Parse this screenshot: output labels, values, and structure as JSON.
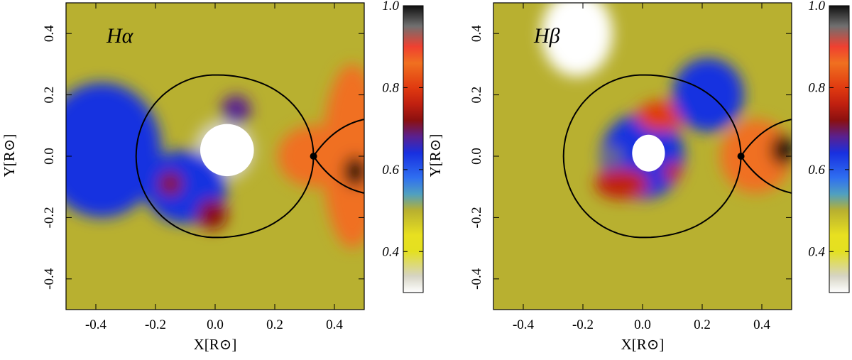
{
  "chart_data": [
    {
      "type": "heatmap",
      "panel_label": "Hα",
      "xlabel": "X[R⊙]",
      "ylabel": "Y[R⊙]",
      "xlim": [
        -0.5,
        0.5
      ],
      "ylim": [
        -0.5,
        0.5
      ],
      "x_ticks": [
        -0.4,
        -0.2,
        0.0,
        0.2,
        0.4
      ],
      "y_ticks": [
        -0.4,
        -0.2,
        0.0,
        0.2,
        0.4
      ],
      "x_tick_labels": [
        "-0.4",
        "-0.2",
        "0.0",
        "0.2",
        "0.4"
      ],
      "y_tick_labels": [
        "-0.4",
        "-0.2",
        "0.0",
        "0.2",
        "0.4"
      ],
      "colorbar": {
        "range": [
          0.3,
          1.0
        ],
        "ticks": [
          1.0,
          0.8,
          0.6,
          0.4
        ],
        "tick_labels": [
          "1.0",
          "0.8",
          "0.6",
          "0.4"
        ]
      },
      "background_level": 0.48,
      "features": [
        {
          "kind": "blob",
          "x": 0.03,
          "y": 0.02,
          "rx": 0.1,
          "ry": 0.1,
          "level": 0.34
        },
        {
          "kind": "blob",
          "x": -0.1,
          "y": -0.1,
          "rx": 0.14,
          "ry": 0.12,
          "level": 0.62
        },
        {
          "kind": "blob",
          "x": -0.15,
          "y": -0.09,
          "rx": 0.04,
          "ry": 0.04,
          "level": 0.72
        },
        {
          "kind": "blob",
          "x": 0.07,
          "y": 0.15,
          "rx": 0.05,
          "ry": 0.05,
          "level": 0.66
        },
        {
          "kind": "blob",
          "x": -0.01,
          "y": -0.19,
          "rx": 0.05,
          "ry": 0.05,
          "level": 0.7
        },
        {
          "kind": "blob",
          "x": -0.38,
          "y": 0.02,
          "rx": 0.2,
          "ry": 0.22,
          "level": 0.6
        },
        {
          "kind": "blob",
          "x": 0.33,
          "y": 0.0,
          "rx": 0.12,
          "ry": 0.1,
          "level": 0.84
        },
        {
          "kind": "blob",
          "x": 0.46,
          "y": 0.0,
          "rx": 0.1,
          "ry": 0.3,
          "level": 0.82
        },
        {
          "kind": "blob",
          "x": 0.47,
          "y": -0.05,
          "rx": 0.04,
          "ry": 0.05,
          "level": 0.98
        }
      ],
      "white_core": {
        "x": 0.04,
        "y": 0.02,
        "rx": 0.09,
        "ry": 0.085
      }
    },
    {
      "type": "heatmap",
      "panel_label": "Hβ",
      "xlabel": "X[R⊙]",
      "ylabel": "Y[R⊙]",
      "xlim": [
        -0.5,
        0.5
      ],
      "ylim": [
        -0.5,
        0.5
      ],
      "x_ticks": [
        -0.4,
        -0.2,
        0.0,
        0.2,
        0.4
      ],
      "y_ticks": [
        -0.4,
        -0.2,
        0.0,
        0.2,
        0.4
      ],
      "x_tick_labels": [
        "-0.4",
        "-0.2",
        "0.0",
        "0.2",
        "0.4"
      ],
      "y_tick_labels": [
        "-0.4",
        "-0.2",
        "0.0",
        "0.2",
        "0.4"
      ],
      "colorbar": {
        "range": [
          0.3,
          1.0
        ],
        "ticks": [
          1.0,
          0.8,
          0.6,
          0.4
        ],
        "tick_labels": [
          "1.0",
          "0.8",
          "0.6",
          "0.4"
        ]
      },
      "background_level": 0.46,
      "features": [
        {
          "kind": "blob",
          "x": -0.22,
          "y": 0.4,
          "rx": 0.12,
          "ry": 0.14,
          "level": 0.3
        },
        {
          "kind": "blob",
          "x": 0.0,
          "y": 0.0,
          "rx": 0.14,
          "ry": 0.14,
          "level": 0.64
        },
        {
          "kind": "blob",
          "x": 0.06,
          "y": 0.13,
          "rx": 0.08,
          "ry": 0.05,
          "level": 0.8
        },
        {
          "kind": "blob",
          "x": -0.07,
          "y": -0.09,
          "rx": 0.09,
          "ry": 0.05,
          "level": 0.76
        },
        {
          "kind": "blob",
          "x": -0.1,
          "y": 0.0,
          "rx": 0.03,
          "ry": 0.03,
          "level": 0.95
        },
        {
          "kind": "blob",
          "x": 0.1,
          "y": -0.05,
          "rx": 0.03,
          "ry": 0.03,
          "level": 0.73
        },
        {
          "kind": "blob",
          "x": 0.38,
          "y": 0.0,
          "rx": 0.12,
          "ry": 0.12,
          "level": 0.82
        },
        {
          "kind": "blob",
          "x": 0.47,
          "y": 0.02,
          "rx": 0.04,
          "ry": 0.05,
          "level": 0.98
        },
        {
          "kind": "blob",
          "x": 0.22,
          "y": 0.2,
          "rx": 0.12,
          "ry": 0.12,
          "level": 0.62
        }
      ],
      "white_core": {
        "x": 0.02,
        "y": 0.01,
        "rx": 0.055,
        "ry": 0.06
      }
    }
  ],
  "colormap": [
    [
      0.3,
      "#ffffff"
    ],
    [
      0.34,
      "#d6d4c4"
    ],
    [
      0.4,
      "#e4e020"
    ],
    [
      0.44,
      "#e8e020"
    ],
    [
      0.5,
      "#b8b030"
    ],
    [
      0.54,
      "#50a0c0"
    ],
    [
      0.58,
      "#2f6ff0"
    ],
    [
      0.64,
      "#1830e0"
    ],
    [
      0.68,
      "#5a2090"
    ],
    [
      0.72,
      "#8a1010"
    ],
    [
      0.76,
      "#c02010"
    ],
    [
      0.8,
      "#e03a10"
    ],
    [
      0.86,
      "#f07020"
    ],
    [
      0.9,
      "#f04030"
    ],
    [
      0.95,
      "#707070"
    ],
    [
      1.0,
      "#101010"
    ]
  ]
}
